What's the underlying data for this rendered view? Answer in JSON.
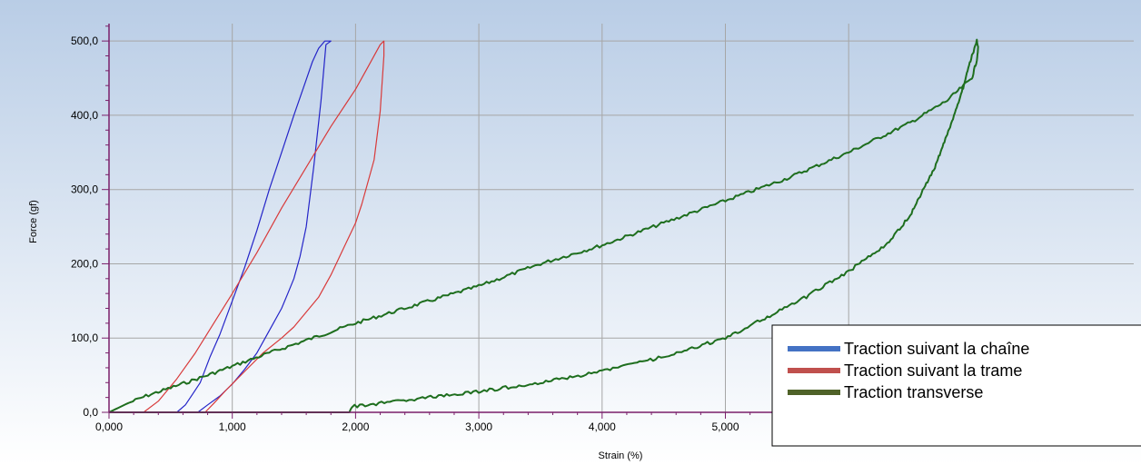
{
  "chart_data": {
    "type": "line",
    "title": "",
    "xlabel": "Strain (%)",
    "ylabel": "Force (gf)",
    "xlim": [
      0,
      7
    ],
    "ylim": [
      0,
      520
    ],
    "x_ticks": [
      0,
      1,
      2,
      3,
      4,
      5
    ],
    "x_tick_labels": [
      "0,000",
      "1,000",
      "2,000",
      "3,000",
      "4,000",
      "5,000"
    ],
    "y_ticks": [
      0,
      100,
      200,
      300,
      400,
      500
    ],
    "y_tick_labels": [
      "0,0",
      "100,0",
      "200,0",
      "300,0",
      "400,0",
      "500,0"
    ],
    "grid": true,
    "legend_position": "bottom-right",
    "background_colors": [
      "#b9cde6",
      "#ffffff"
    ],
    "series": [
      {
        "name": "Traction suivant la chaîne",
        "color": "#2424c8",
        "legend_color": "#4472c4",
        "noise": 0,
        "x": [
          0.55,
          0.62,
          0.68,
          0.74,
          0.82,
          0.9,
          1.0,
          1.1,
          1.2,
          1.3,
          1.4,
          1.5,
          1.6,
          1.65,
          1.7,
          1.75,
          1.77,
          1.8,
          1.8,
          1.76,
          1.72,
          1.66,
          1.6,
          1.55,
          1.5,
          1.45,
          1.4,
          1.3,
          1.2,
          1.1,
          1.0,
          0.9,
          0.8,
          0.72
        ],
        "y": [
          0,
          10,
          25,
          40,
          75,
          105,
          150,
          195,
          245,
          300,
          350,
          400,
          448,
          472,
          490,
          500,
          500,
          500,
          500,
          495,
          420,
          330,
          250,
          210,
          180,
          160,
          140,
          110,
          80,
          58,
          38,
          22,
          10,
          0
        ]
      },
      {
        "name": "Traction suivant la trame",
        "color": "#d83a3a",
        "legend_color": "#c0504d",
        "noise": 0,
        "x": [
          0.28,
          0.4,
          0.55,
          0.7,
          0.85,
          1.0,
          1.2,
          1.4,
          1.6,
          1.8,
          2.0,
          2.1,
          2.2,
          2.23,
          2.23,
          2.2,
          2.15,
          2.05,
          2.0,
          1.9,
          1.8,
          1.7,
          1.6,
          1.5,
          1.4,
          1.25,
          1.1,
          0.95,
          0.85,
          0.78
        ],
        "y": [
          0,
          15,
          45,
          80,
          120,
          160,
          215,
          275,
          330,
          385,
          435,
          465,
          495,
          500,
          480,
          405,
          340,
          280,
          255,
          220,
          185,
          155,
          135,
          115,
          100,
          80,
          55,
          30,
          12,
          0
        ]
      },
      {
        "name": "Traction transverse",
        "color": "#1e6e1e",
        "legend_color": "#4f6228",
        "noise": 1.8,
        "x": [
          0.0,
          0.15,
          0.3,
          0.5,
          0.8,
          1.0,
          1.3,
          1.6,
          2.0,
          2.5,
          3.0,
          3.5,
          4.0,
          4.5,
          5.0,
          5.5,
          6.0,
          6.5,
          6.8,
          7.0,
          7.04,
          7.05,
          7.04,
          7.0,
          6.9,
          6.7,
          6.5,
          6.3,
          6.0,
          5.6,
          5.3,
          5.0,
          4.5,
          4.0,
          3.5,
          3.0,
          2.5,
          2.1,
          1.97,
          1.95,
          1.5,
          1.0,
          0.5,
          0.0
        ],
        "y": [
          0,
          12,
          22,
          33,
          50,
          62,
          80,
          97,
          120,
          145,
          170,
          200,
          225,
          255,
          285,
          315,
          350,
          390,
          420,
          450,
          475,
          490,
          500,
          480,
          420,
          330,
          265,
          225,
          190,
          150,
          125,
          100,
          75,
          55,
          40,
          28,
          18,
          10,
          8,
          0,
          0,
          0,
          0,
          0
        ]
      }
    ]
  }
}
